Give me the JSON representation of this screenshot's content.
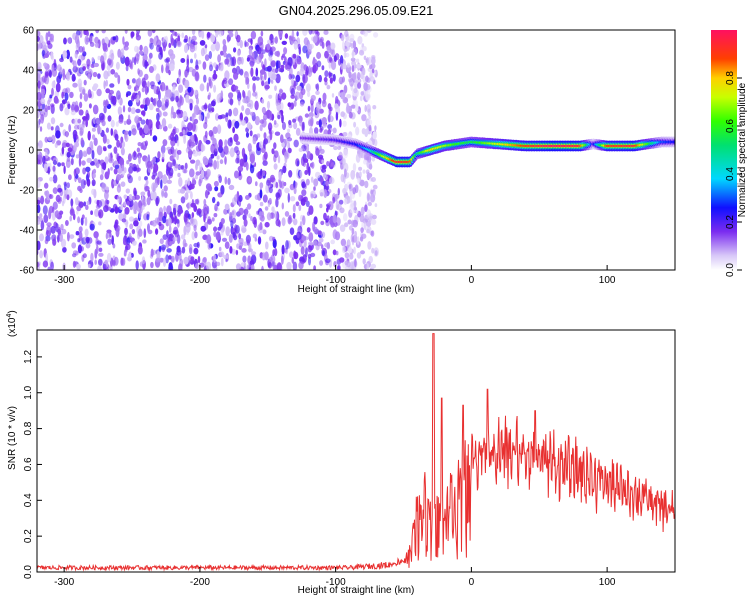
{
  "title": "GN04.2025.296.05.09.E21",
  "chart_data": [
    {
      "type": "heatmap",
      "panel": "spectrogram",
      "xlabel": "Height of straight line (km)",
      "ylabel": "Frequency (Hz)",
      "xlim": [
        -320,
        150
      ],
      "ylim": [
        -60,
        60
      ],
      "xticks": [
        -300,
        -200,
        -100,
        0,
        100
      ],
      "yticks": [
        60,
        40,
        20,
        0,
        -20,
        -40,
        -60
      ],
      "noise_region_km": [
        -320,
        -70
      ],
      "signal_ridge": {
        "x": [
          -125,
          -100,
          -85,
          -75,
          -65,
          -55,
          -45,
          -40,
          -30,
          -20,
          -10,
          0,
          20,
          40,
          60,
          80,
          90,
          100,
          120,
          140,
          150
        ],
        "y": [
          6,
          5,
          3,
          0,
          -3,
          -6,
          -6,
          -2,
          0,
          2,
          3,
          4,
          3,
          2,
          2,
          2,
          3,
          2,
          2,
          4,
          4
        ],
        "amplitude": [
          0.15,
          0.2,
          0.25,
          0.4,
          0.7,
          0.95,
          0.9,
          0.5,
          0.8,
          0.7,
          0.6,
          0.55,
          0.75,
          0.9,
          1.0,
          0.95,
          0.2,
          0.9,
          0.95,
          0.3,
          0.25
        ]
      },
      "colorbar": {
        "label": "Normalized spectral amplitude",
        "range": [
          0,
          1
        ],
        "ticks": [
          "0.0",
          "0.2",
          "0.4",
          "0.6",
          "0.8"
        ]
      },
      "grid": false
    },
    {
      "type": "line",
      "panel": "snr",
      "xlabel": "Height of straight line (km)",
      "ylabel": "SNR (10 * v/v)",
      "multiplier": "(x10",
      "multiplier_exp": "4",
      "multiplier_close": ")",
      "xlim": [
        -320,
        150
      ],
      "ylim": [
        0,
        1.35
      ],
      "xticks": [
        -300,
        -200,
        -100,
        0,
        100
      ],
      "yticks": [
        "0.0",
        "0.2",
        "0.4",
        "0.6",
        "0.8",
        "1.0",
        "1.2"
      ],
      "series": [
        {
          "color": "#e83030",
          "envelope_x": [
            -320,
            -90,
            -60,
            -50,
            -45,
            -40,
            -35,
            -30,
            -25,
            -20,
            -15,
            -10,
            -5,
            0,
            10,
            20,
            30,
            45,
            50,
            60,
            70,
            80,
            90,
            100,
            110,
            120,
            130,
            140,
            150
          ],
          "envelope_y": [
            0.03,
            0.03,
            0.05,
            0.08,
            0.15,
            0.45,
            0.55,
            0.5,
            0.5,
            0.55,
            0.6,
            0.62,
            0.7,
            0.75,
            0.85,
            0.85,
            0.82,
            0.85,
            0.8,
            0.76,
            0.72,
            0.7,
            0.66,
            0.62,
            0.58,
            0.55,
            0.5,
            0.45,
            0.42
          ],
          "spikes": [
            {
              "x": -28,
              "y": 1.33
            },
            {
              "x": -22,
              "y": 0.97
            },
            {
              "x": -6,
              "y": 0.93
            },
            {
              "x": 12,
              "y": 1.02
            },
            {
              "x": 47,
              "y": 0.9
            }
          ]
        }
      ],
      "grid": false
    }
  ]
}
